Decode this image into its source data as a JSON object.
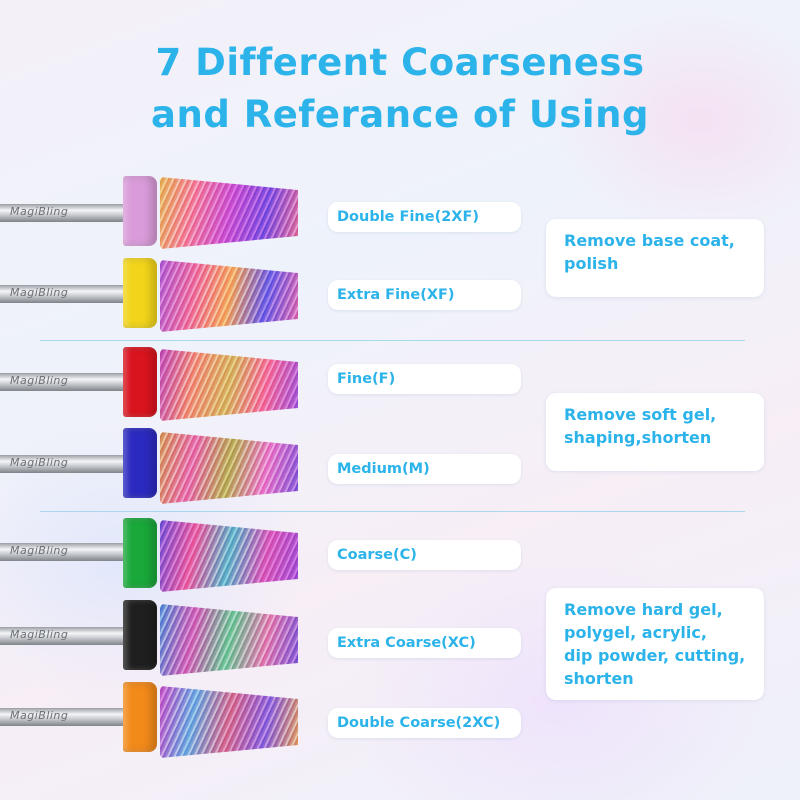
{
  "title": {
    "line1": "7 Different Coarseness",
    "line2": "and Referance of Using"
  },
  "brand_text": "MagiBling",
  "colors": {
    "accent": "#2bb3ea",
    "collar_2xf": "#d99bd9",
    "collar_xf": "#f2d41a",
    "collar_f": "#d9141e",
    "collar_m": "#2b2ac0",
    "collar_c": "#1aa83a",
    "collar_xc": "#1f1f1f",
    "collar_2xc": "#f28a1a"
  },
  "bits": [
    {
      "label": "Double Fine(2XF)"
    },
    {
      "label": "Extra Fine(XF)"
    },
    {
      "label": "Fine(F)"
    },
    {
      "label": "Medium(M)"
    },
    {
      "label": "Coarse(C)"
    },
    {
      "label": "Extra Coarse(XC)"
    },
    {
      "label": "Double Coarse(2XC)"
    }
  ],
  "uses": [
    {
      "line1": "Remove base coat,",
      "line2": "polish"
    },
    {
      "line1": "Remove soft gel,",
      "line2": "shaping,shorten"
    },
    {
      "line1": "Remove hard gel,",
      "line2": "polygel, acrylic,",
      "line3": "dip powder, cutting,",
      "line4": "shorten"
    }
  ]
}
